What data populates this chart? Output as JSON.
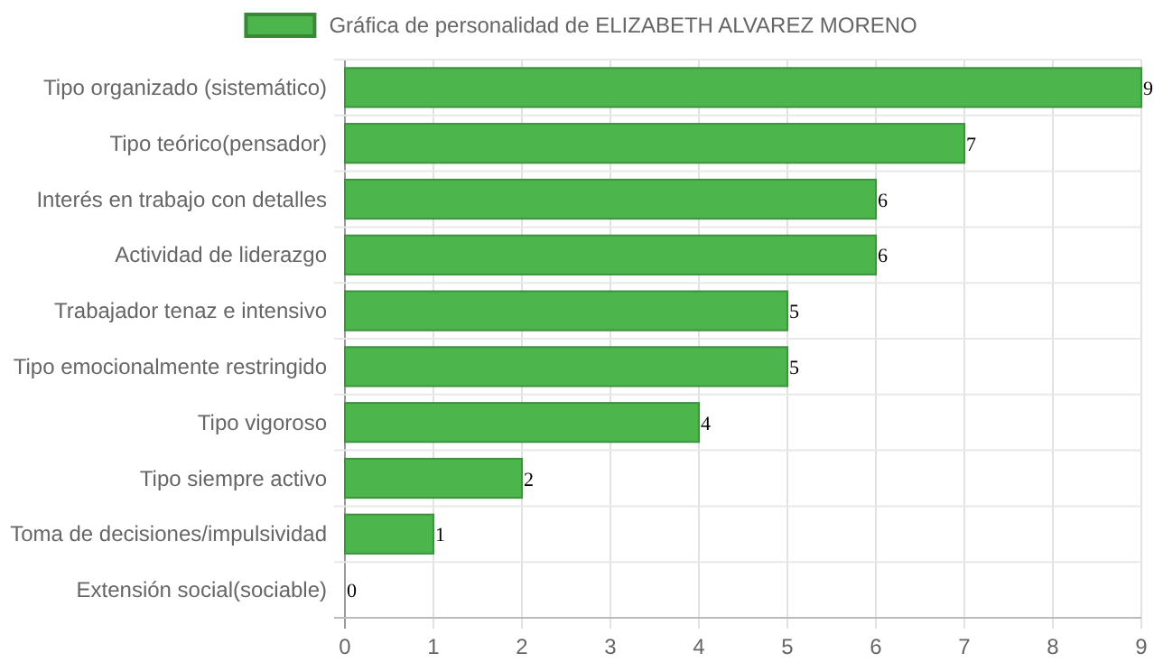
{
  "chart_data": {
    "type": "bar",
    "orientation": "horizontal",
    "categories": [
      "Tipo organizado (sistemático)",
      "Tipo teórico(pensador)",
      "Interés en trabajo con detalles",
      "Actividad de liderazgo",
      "Trabajador tenaz e intensivo",
      "Tipo emocionalmente restringido",
      "Tipo vigoroso",
      "Tipo siempre activo",
      "Toma de decisiones/impulsividad",
      "Extensión social(sociable)"
    ],
    "series": [
      {
        "name": "Gráfica de personalidad de ELIZABETH ALVAREZ MORENO",
        "color": "#4cb54c",
        "values": [
          9,
          7,
          6,
          6,
          5,
          5,
          4,
          2,
          1,
          0
        ]
      }
    ],
    "xlim": [
      0,
      9
    ],
    "xticks": [
      0,
      1,
      2,
      3,
      4,
      5,
      6,
      7,
      8,
      9
    ],
    "grid": true,
    "legend": "top",
    "data_labels": true
  }
}
